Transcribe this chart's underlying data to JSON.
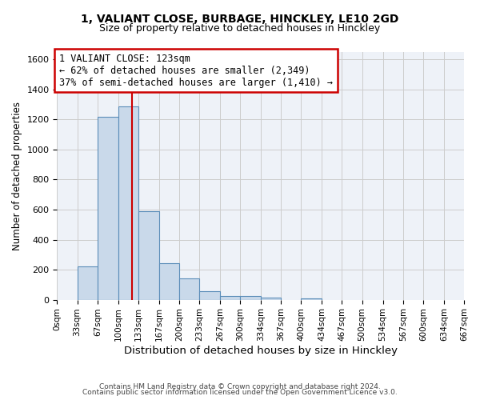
{
  "title": "1, VALIANT CLOSE, BURBAGE, HINCKLEY, LE10 2GD",
  "subtitle": "Size of property relative to detached houses in Hinckley",
  "xlabel": "Distribution of detached houses by size in Hinckley",
  "ylabel": "Number of detached properties",
  "bin_edges": [
    0,
    33,
    67,
    100,
    133,
    167,
    200,
    233,
    267,
    300,
    334,
    367,
    400,
    434,
    467,
    500,
    534,
    567,
    600,
    634,
    667
  ],
  "bin_counts": [
    0,
    220,
    1220,
    1290,
    590,
    245,
    140,
    55,
    25,
    22,
    15,
    0,
    8,
    0,
    0,
    0,
    0,
    0,
    0,
    0
  ],
  "bar_facecolor": "#c9d9ea",
  "bar_edgecolor": "#5b8db8",
  "grid_color": "#cccccc",
  "background_color": "#eef2f8",
  "property_line_x": 123,
  "property_line_color": "#cc0000",
  "annotation_line1": "1 VALIANT CLOSE: 123sqm",
  "annotation_line2": "← 62% of detached houses are smaller (2,349)",
  "annotation_line3": "37% of semi-detached houses are larger (1,410) →",
  "annotation_box_facecolor": "white",
  "annotation_box_edgecolor": "#cc0000",
  "ylim": [
    0,
    1650
  ],
  "yticks": [
    0,
    200,
    400,
    600,
    800,
    1000,
    1200,
    1400,
    1600
  ],
  "xtick_labels": [
    "0sqm",
    "33sqm",
    "67sqm",
    "100sqm",
    "133sqm",
    "167sqm",
    "200sqm",
    "233sqm",
    "267sqm",
    "300sqm",
    "334sqm",
    "367sqm",
    "400sqm",
    "434sqm",
    "467sqm",
    "500sqm",
    "534sqm",
    "567sqm",
    "600sqm",
    "634sqm",
    "667sqm"
  ],
  "footer_line1": "Contains HM Land Registry data © Crown copyright and database right 2024.",
  "footer_line2": "Contains public sector information licensed under the Open Government Licence v3.0."
}
